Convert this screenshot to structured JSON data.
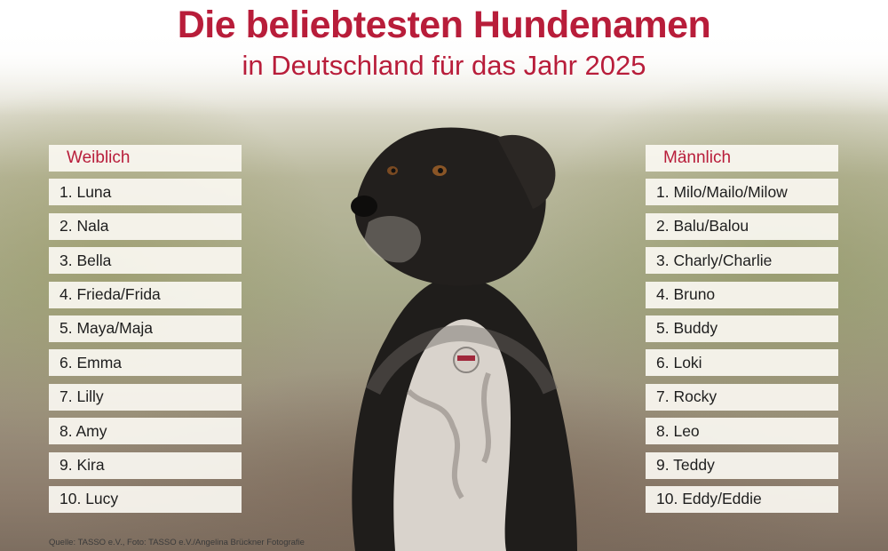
{
  "title": "Die beliebtesten Hundenamen",
  "subtitle": "in Deutschland für das Jahr 2025",
  "female": {
    "header": "Weiblich",
    "items": [
      "1. Luna",
      "2. Nala",
      "3. Bella",
      "4. Frieda/Frida",
      "5. Maya/Maja",
      "6. Emma",
      "7. Lilly",
      "8. Amy",
      "9. Kira",
      "10. Lucy"
    ]
  },
  "male": {
    "header": "Männlich",
    "items": [
      "1. Milo/Mailo/Milow",
      "2. Balu/Balou",
      "3. Charly/Charlie",
      "4. Bruno",
      "5. Buddy",
      "6. Loki",
      "7. Rocky",
      "8. Leo",
      "9. Teddy",
      "10. Eddy/Eddie"
    ]
  },
  "source": "Quelle: TASSO e.V., Foto: TASSO e.V./Angelina Brückner Fotografie",
  "colors": {
    "accent": "#b81d3a",
    "box_bg": "#faf7f1"
  }
}
